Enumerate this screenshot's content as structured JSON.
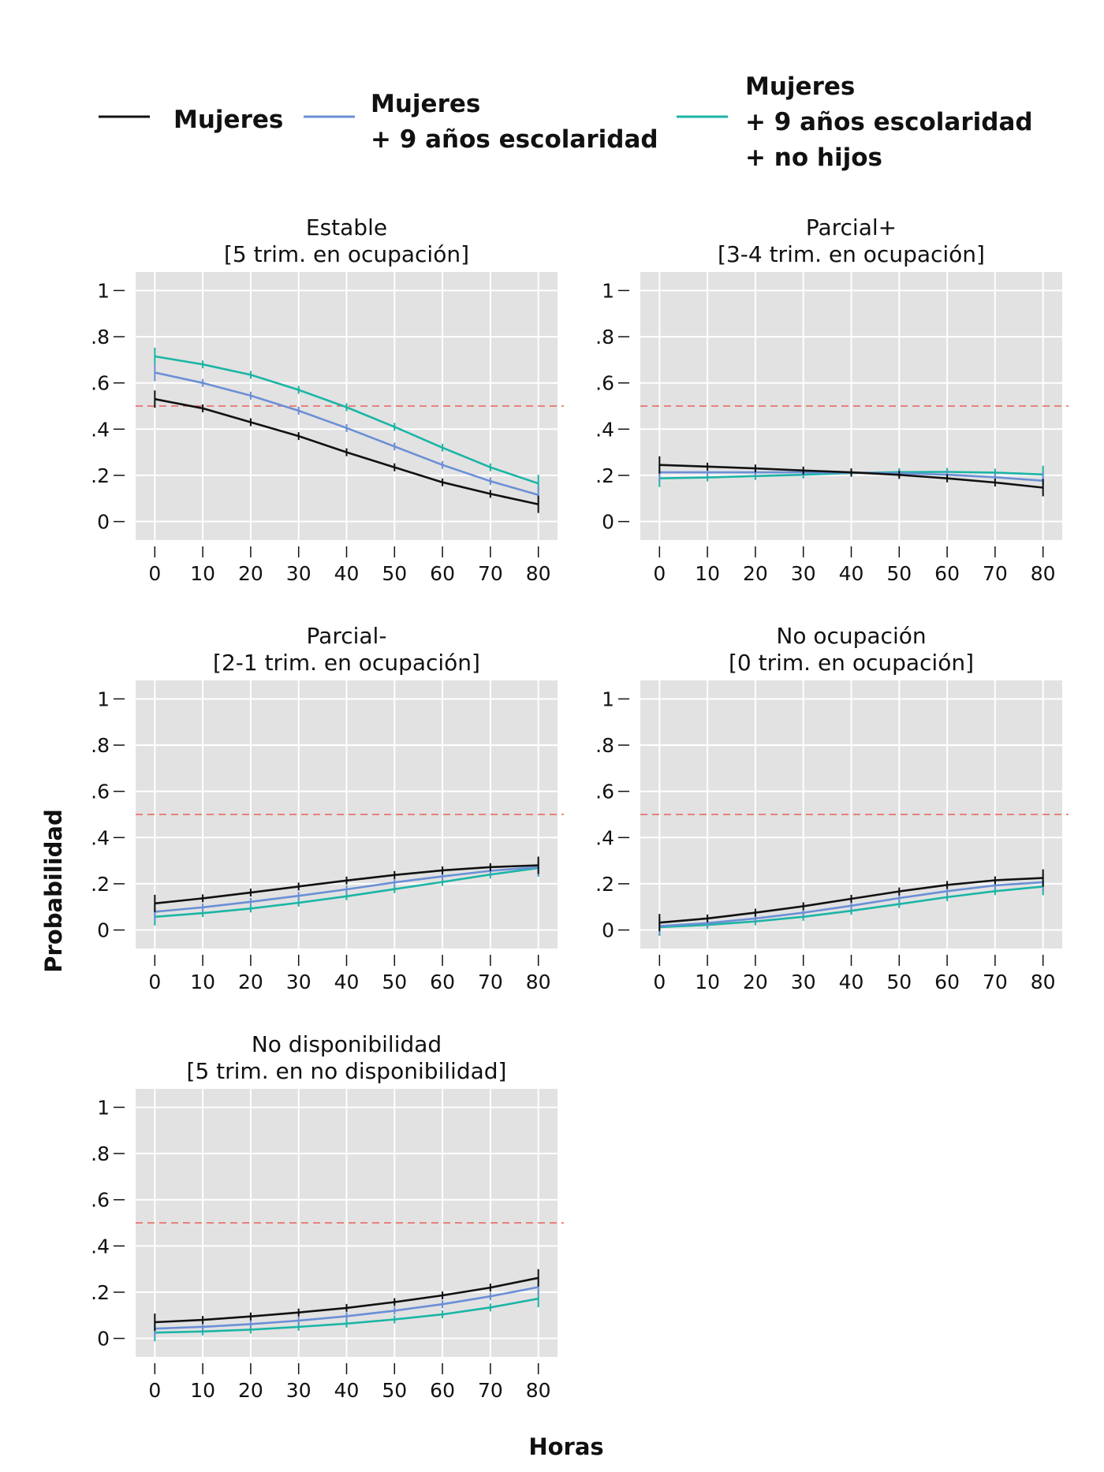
{
  "legend": [
    {
      "lines": [
        "Mujeres"
      ],
      "color": "#111111"
    },
    {
      "lines": [
        "Mujeres",
        "+ 9 años escolaridad"
      ],
      "color": "#6b8fd6"
    },
    {
      "lines": [
        "Mujeres",
        "+ 9 años escolaridad",
        "+ no hijos"
      ],
      "color": "#1bb5a5"
    }
  ],
  "ylabel": "Probabilidad",
  "xlabel": "Horas",
  "colors": {
    "panel_bg": "#e2e2e2",
    "grid": "#ffffff",
    "reference": "#e8625b"
  },
  "chart_data": [
    {
      "type": "line",
      "title": [
        "Estable",
        "[5 trim. en ocupación]"
      ],
      "x": [
        0,
        10,
        20,
        30,
        40,
        50,
        60,
        70,
        80
      ],
      "xticks": [
        "0",
        "10",
        "20",
        "30",
        "40",
        "50",
        "60",
        "70",
        "80"
      ],
      "yticks": [
        "0",
        ".2",
        ".4",
        ".6",
        ".8",
        "1"
      ],
      "ylim": [
        -0.08,
        1.08
      ],
      "reference_line": 0.5,
      "series": [
        {
          "name": "Mujeres",
          "values": [
            0.53,
            0.49,
            0.43,
            0.37,
            0.3,
            0.235,
            0.17,
            0.12,
            0.075
          ]
        },
        {
          "name": "Mujeres + 9 años escolaridad",
          "values": [
            0.645,
            0.6,
            0.545,
            0.48,
            0.405,
            0.325,
            0.245,
            0.175,
            0.115
          ]
        },
        {
          "name": "Mujeres + 9 años escolaridad + no hijos",
          "values": [
            0.715,
            0.68,
            0.635,
            0.57,
            0.495,
            0.41,
            0.32,
            0.235,
            0.165
          ]
        }
      ]
    },
    {
      "type": "line",
      "title": [
        "Parcial+",
        "[3-4 trim. en ocupación]"
      ],
      "x": [
        0,
        10,
        20,
        30,
        40,
        50,
        60,
        70,
        80
      ],
      "xticks": [
        "0",
        "10",
        "20",
        "30",
        "40",
        "50",
        "60",
        "70",
        "80"
      ],
      "yticks": [
        "0",
        ".2",
        ".4",
        ".6",
        ".8",
        "1"
      ],
      "ylim": [
        -0.08,
        1.08
      ],
      "reference_line": 0.5,
      "series": [
        {
          "name": "Mujeres",
          "values": [
            0.245,
            0.238,
            0.23,
            0.221,
            0.213,
            0.202,
            0.187,
            0.169,
            0.147
          ]
        },
        {
          "name": "Mujeres + 9 años escolaridad",
          "values": [
            0.213,
            0.213,
            0.213,
            0.213,
            0.212,
            0.209,
            0.203,
            0.192,
            0.177
          ]
        },
        {
          "name": "Mujeres + 9 años escolaridad + no hijos",
          "values": [
            0.187,
            0.191,
            0.197,
            0.203,
            0.21,
            0.214,
            0.215,
            0.212,
            0.204
          ]
        }
      ]
    },
    {
      "type": "line",
      "title": [
        "Parcial-",
        "[2-1 trim. en ocupación]"
      ],
      "x": [
        0,
        10,
        20,
        30,
        40,
        50,
        60,
        70,
        80
      ],
      "xticks": [
        "0",
        "10",
        "20",
        "30",
        "40",
        "50",
        "60",
        "70",
        "80"
      ],
      "yticks": [
        "0",
        ".2",
        ".4",
        ".6",
        ".8",
        "1"
      ],
      "ylim": [
        -0.08,
        1.08
      ],
      "reference_line": 0.5,
      "series": [
        {
          "name": "Mujeres",
          "values": [
            0.115,
            0.137,
            0.162,
            0.188,
            0.214,
            0.238,
            0.258,
            0.272,
            0.28
          ]
        },
        {
          "name": "Mujeres + 9 años escolaridad",
          "values": [
            0.079,
            0.098,
            0.122,
            0.148,
            0.176,
            0.206,
            0.232,
            0.256,
            0.272
          ]
        },
        {
          "name": "Mujeres + 9 años escolaridad + no hijos",
          "values": [
            0.057,
            0.073,
            0.093,
            0.118,
            0.146,
            0.177,
            0.208,
            0.24,
            0.268
          ]
        }
      ]
    },
    {
      "type": "line",
      "title": [
        "No ocupación",
        "[0 trim. en ocupación]"
      ],
      "x": [
        0,
        10,
        20,
        30,
        40,
        50,
        60,
        70,
        80
      ],
      "xticks": [
        "0",
        "10",
        "20",
        "30",
        "40",
        "50",
        "60",
        "70",
        "80"
      ],
      "yticks": [
        "0",
        ".2",
        ".4",
        ".6",
        ".8",
        "1"
      ],
      "ylim": [
        -0.08,
        1.08
      ],
      "reference_line": 0.5,
      "series": [
        {
          "name": "Mujeres",
          "values": [
            0.032,
            0.05,
            0.075,
            0.103,
            0.135,
            0.167,
            0.195,
            0.215,
            0.225
          ]
        },
        {
          "name": "Mujeres + 9 años escolaridad",
          "values": [
            0.017,
            0.03,
            0.05,
            0.075,
            0.105,
            0.138,
            0.168,
            0.193,
            0.207
          ]
        },
        {
          "name": "Mujeres + 9 años escolaridad + no hijos",
          "values": [
            0.012,
            0.022,
            0.037,
            0.057,
            0.083,
            0.112,
            0.142,
            0.168,
            0.188
          ]
        }
      ]
    },
    {
      "type": "line",
      "title": [
        "No disponibilidad",
        "[5 trim. en no disponibilidad]"
      ],
      "x": [
        0,
        10,
        20,
        30,
        40,
        50,
        60,
        70,
        80
      ],
      "xticks": [
        "0",
        "10",
        "20",
        "30",
        "40",
        "50",
        "60",
        "70",
        "80"
      ],
      "yticks": [
        "0",
        ".2",
        ".4",
        ".6",
        ".8",
        "1"
      ],
      "ylim": [
        -0.08,
        1.08
      ],
      "reference_line": 0.5,
      "series": [
        {
          "name": "Mujeres",
          "values": [
            0.07,
            0.08,
            0.095,
            0.112,
            0.132,
            0.157,
            0.186,
            0.22,
            0.262
          ]
        },
        {
          "name": "Mujeres + 9 años escolaridad",
          "values": [
            0.042,
            0.05,
            0.062,
            0.077,
            0.096,
            0.12,
            0.148,
            0.182,
            0.222
          ]
        },
        {
          "name": "Mujeres + 9 años escolaridad + no hijos",
          "values": [
            0.025,
            0.03,
            0.038,
            0.05,
            0.064,
            0.082,
            0.104,
            0.134,
            0.172
          ]
        }
      ]
    }
  ]
}
